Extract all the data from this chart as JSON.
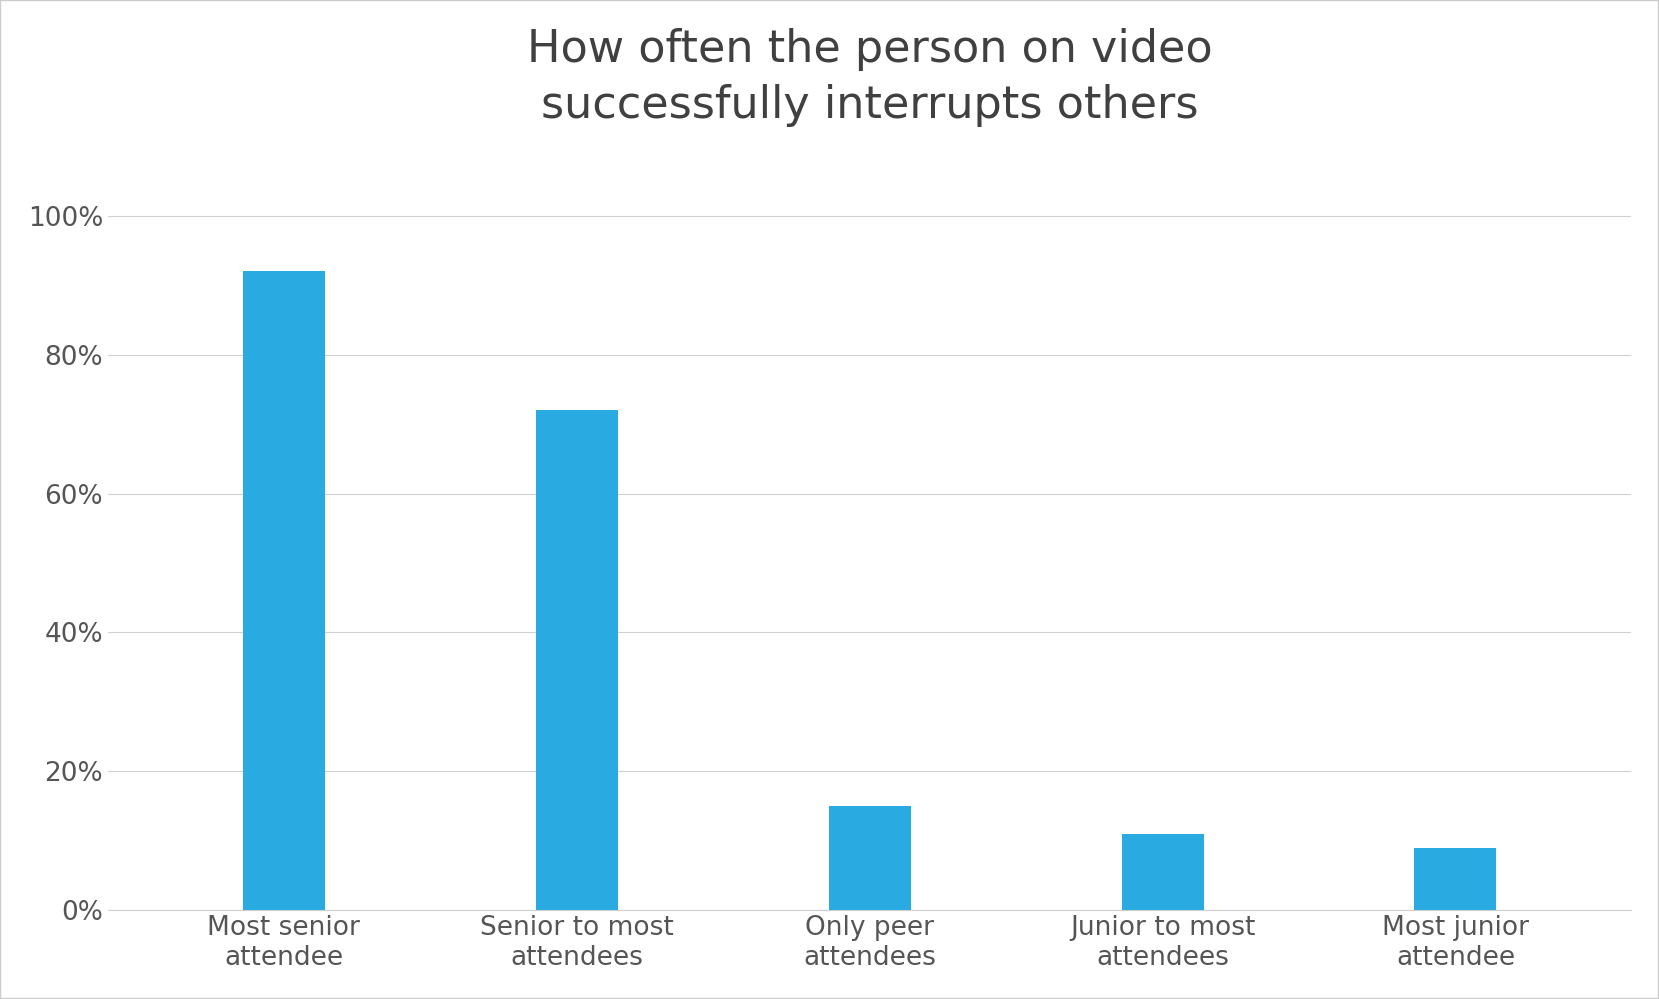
{
  "title": "How often the person on video\nsuccessfully interrupts others",
  "categories": [
    "Most senior\nattendee",
    "Senior to most\nattendees",
    "Only peer\nattendees",
    "Junior to most\nattendees",
    "Most junior\nattendee"
  ],
  "values": [
    0.92,
    0.72,
    0.15,
    0.11,
    0.09
  ],
  "bar_color": "#29ABE2",
  "background_color": "#ffffff",
  "ylim": [
    0,
    1.08
  ],
  "yticks": [
    0,
    0.2,
    0.4,
    0.6,
    0.8,
    1.0
  ],
  "title_fontsize": 32,
  "tick_fontsize": 19,
  "title_color": "#404040",
  "tick_color": "#555555",
  "grid_color": "#d0d0d0",
  "bar_width": 0.28
}
